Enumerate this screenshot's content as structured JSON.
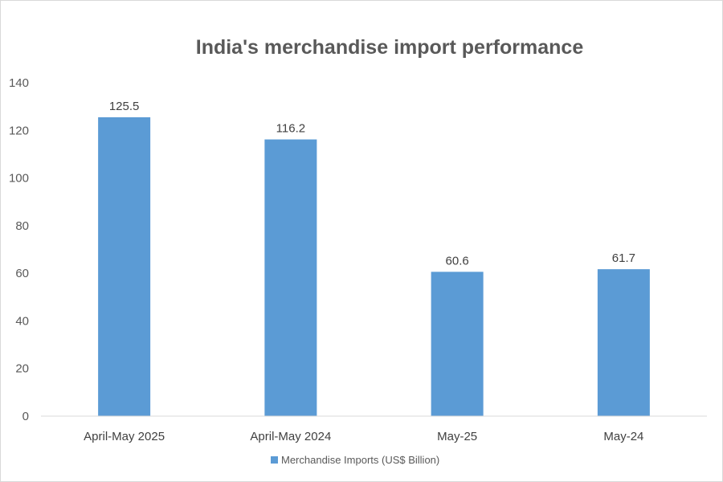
{
  "chart_data": {
    "type": "bar",
    "title": "India's merchandise import performance",
    "categories": [
      "April-May 2025",
      "April-May 2024",
      "May-25",
      "May-24"
    ],
    "series": [
      {
        "name": "Merchandise Imports (US$ Billion)",
        "values": [
          125.5,
          116.2,
          60.6,
          61.7
        ],
        "color": "#5b9bd5"
      }
    ],
    "data_labels": [
      "125.5",
      "116.2",
      "60.6",
      "61.7"
    ],
    "ylim": [
      0,
      140
    ],
    "yticks": [
      0,
      20,
      40,
      60,
      80,
      100,
      120,
      140
    ],
    "xlabel": "",
    "ylabel": "",
    "grid": false,
    "legend_position": "bottom"
  }
}
